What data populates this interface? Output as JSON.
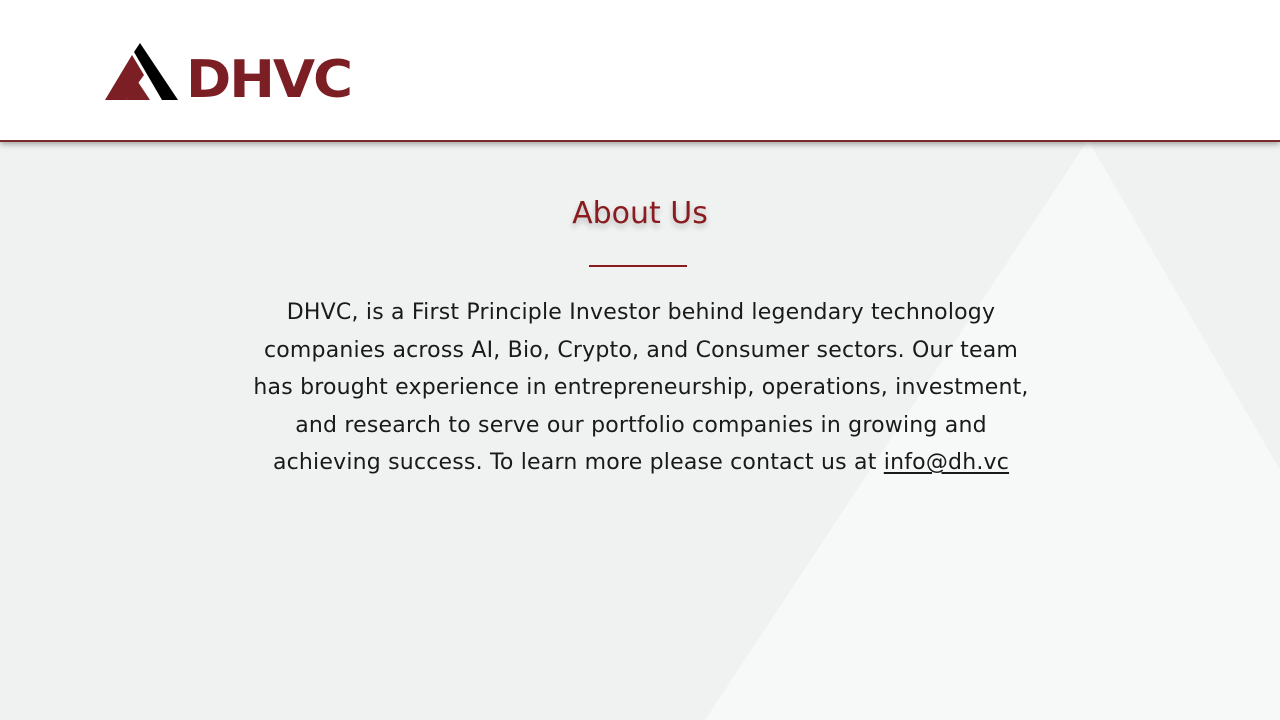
{
  "header": {
    "logo_text": "DHVC"
  },
  "about": {
    "title": "About Us",
    "body": "DHVC, is a First Principle Investor behind legendary technology companies across AI, Bio, Crypto, and Consumer sectors. Our team has brought experience in entrepreneurship, operations, investment, and research to serve our portfolio companies in growing and achieving success. To learn more please contact us at",
    "email": "info@dh.vc"
  },
  "colors": {
    "brand": "#7b1f24",
    "background": "#f0f1f1",
    "header_bg": "#ffffff"
  }
}
